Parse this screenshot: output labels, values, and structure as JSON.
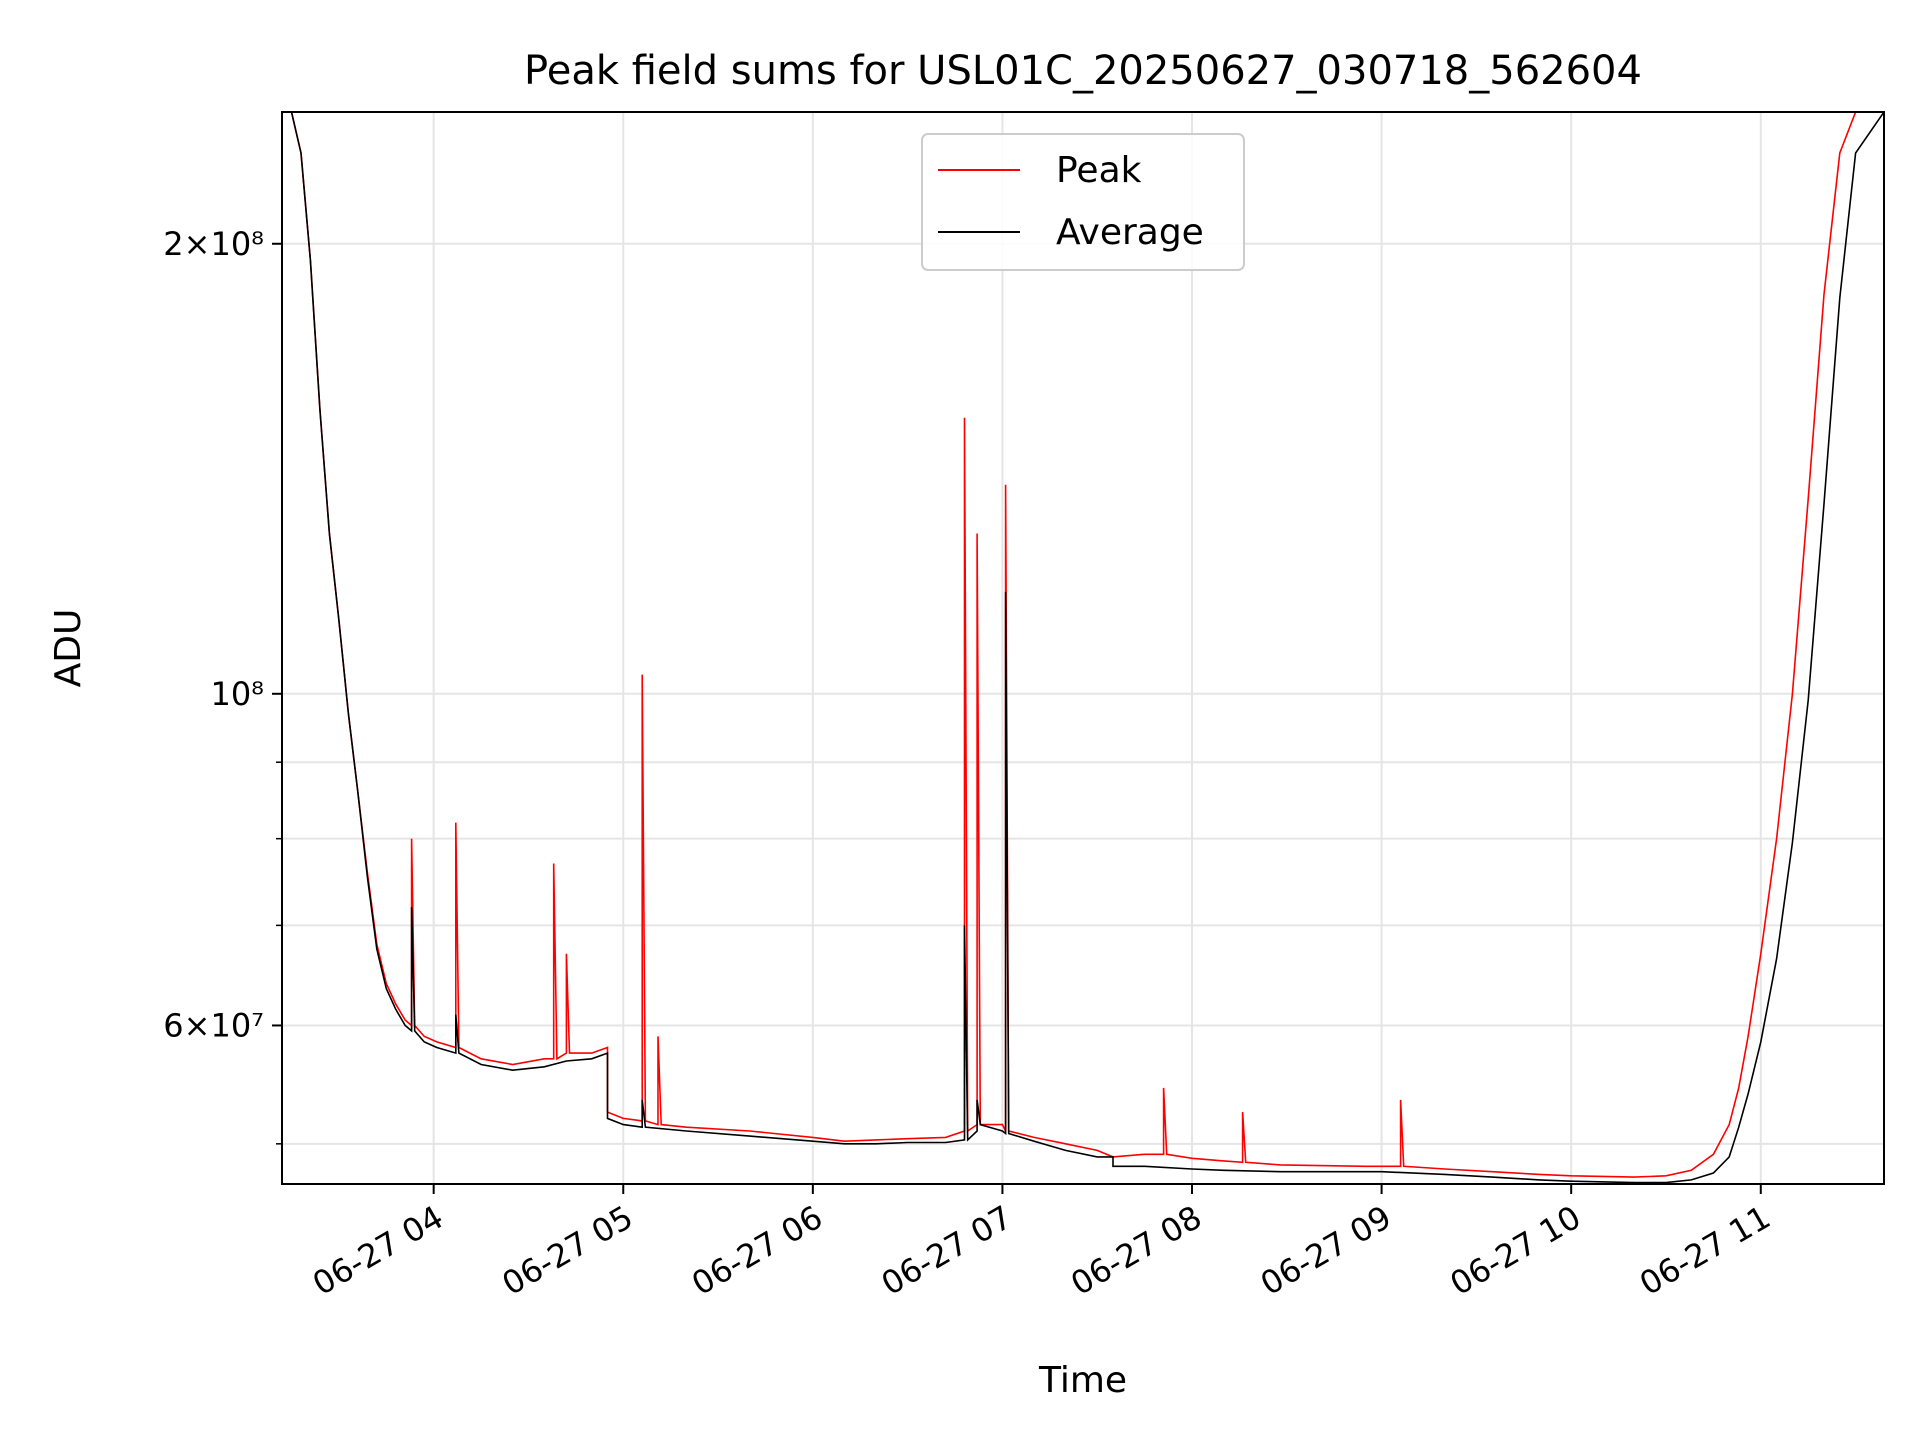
{
  "chart_data": {
    "type": "line",
    "title": "Peak field sums for USL01C_20250627_030718_562604",
    "xlabel": "Time",
    "ylabel": "ADU",
    "yscale": "log",
    "xlim": [
      "2025-06-27 03:12",
      "2025-06-27 11:39"
    ],
    "ylim": [
      47000000,
      245000000
    ],
    "grid": true,
    "legend": "upper-center",
    "colors": {
      "Peak": "#ff0000",
      "Average": "#000000"
    },
    "x_ticks": [
      {
        "t": "2025-06-27 04:00",
        "label": "06-27 04"
      },
      {
        "t": "2025-06-27 05:00",
        "label": "06-27 05"
      },
      {
        "t": "2025-06-27 06:00",
        "label": "06-27 06"
      },
      {
        "t": "2025-06-27 07:00",
        "label": "06-27 07"
      },
      {
        "t": "2025-06-27 08:00",
        "label": "06-27 08"
      },
      {
        "t": "2025-06-27 09:00",
        "label": "06-27 09"
      },
      {
        "t": "2025-06-27 10:00",
        "label": "06-27 10"
      },
      {
        "t": "2025-06-27 11:00",
        "label": "06-27 11"
      }
    ],
    "y_ticks": [
      {
        "v": 200000000,
        "label": "2×10⁸"
      },
      {
        "v": 100000000,
        "label": "10⁸"
      },
      {
        "v": 60000000,
        "label": "6×10⁷"
      }
    ],
    "y_minor_ticks": [
      50000000,
      70000000,
      80000000,
      90000000
    ],
    "series": [
      {
        "name": "Peak",
        "x": [
          "2025-06-27 03:12",
          "2025-06-27 03:15",
          "2025-06-27 03:18",
          "2025-06-27 03:21",
          "2025-06-27 03:24",
          "2025-06-27 03:27",
          "2025-06-27 03:30",
          "2025-06-27 03:33",
          "2025-06-27 03:36",
          "2025-06-27 03:39",
          "2025-06-27 03:42",
          "2025-06-27 03:45",
          "2025-06-27 03:48",
          "2025-06-27 03:51",
          "2025-06-27 03:53",
          "2025-06-27 03:53",
          "2025-06-27 03:54",
          "2025-06-27 03:57",
          "2025-06-27 04:01",
          "2025-06-27 04:07",
          "2025-06-27 04:07",
          "2025-06-27 04:08",
          "2025-06-27 04:15",
          "2025-06-27 04:25",
          "2025-06-27 04:35",
          "2025-06-27 04:38",
          "2025-06-27 04:38",
          "2025-06-27 04:39",
          "2025-06-27 04:42",
          "2025-06-27 04:42",
          "2025-06-27 04:43",
          "2025-06-27 04:50",
          "2025-06-27 04:55",
          "2025-06-27 04:55",
          "2025-06-27 05:00",
          "2025-06-27 05:06",
          "2025-06-27 05:06",
          "2025-06-27 05:07",
          "2025-06-27 05:11",
          "2025-06-27 05:11",
          "2025-06-27 05:12",
          "2025-06-27 05:20",
          "2025-06-27 05:40",
          "2025-06-27 06:00",
          "2025-06-27 06:10",
          "2025-06-27 06:20",
          "2025-06-27 06:30",
          "2025-06-27 06:42",
          "2025-06-27 06:48",
          "2025-06-27 06:48",
          "2025-06-27 06:49",
          "2025-06-27 06:52",
          "2025-06-27 06:52",
          "2025-06-27 06:53",
          "2025-06-27 07:00",
          "2025-06-27 07:01",
          "2025-06-27 07:01",
          "2025-06-27 07:02",
          "2025-06-27 07:10",
          "2025-06-27 07:20",
          "2025-06-27 07:30",
          "2025-06-27 07:35",
          "2025-06-27 07:35",
          "2025-06-27 07:45",
          "2025-06-27 07:51",
          "2025-06-27 07:51",
          "2025-06-27 07:52",
          "2025-06-27 08:00",
          "2025-06-27 08:10",
          "2025-06-27 08:16",
          "2025-06-27 08:16",
          "2025-06-27 08:17",
          "2025-06-27 08:28",
          "2025-06-27 08:55",
          "2025-06-27 09:00",
          "2025-06-27 09:06",
          "2025-06-27 09:06",
          "2025-06-27 09:07",
          "2025-06-27 09:20",
          "2025-06-27 09:35",
          "2025-06-27 09:50",
          "2025-06-27 10:00",
          "2025-06-27 10:20",
          "2025-06-27 10:30",
          "2025-06-27 10:38",
          "2025-06-27 10:45",
          "2025-06-27 10:50",
          "2025-06-27 10:53",
          "2025-06-27 10:56",
          "2025-06-27 11:00",
          "2025-06-27 11:05",
          "2025-06-27 11:10",
          "2025-06-27 11:15",
          "2025-06-27 11:20",
          "2025-06-27 11:25",
          "2025-06-27 11:30",
          "2025-06-27 11:39"
        ],
        "y": [
          245000000,
          245000000,
          230000000,
          195000000,
          155000000,
          128000000,
          112000000,
          97000000,
          86000000,
          76000000,
          68000000,
          64000000,
          62000000,
          60500000,
          60000000,
          80000000,
          60000000,
          59000000,
          58500000,
          58000000,
          82000000,
          58000000,
          57000000,
          56500000,
          57000000,
          57000000,
          77000000,
          57000000,
          57500000,
          67000000,
          57500000,
          57500000,
          58000000,
          52500000,
          52000000,
          51800000,
          103000000,
          51800000,
          51500000,
          59000000,
          51500000,
          51300000,
          51000000,
          50500000,
          50200000,
          50300000,
          50400000,
          50500000,
          51000000,
          153000000,
          51000000,
          51500000,
          128000000,
          51500000,
          51500000,
          51000000,
          138000000,
          51000000,
          50500000,
          50000000,
          49500000,
          49000000,
          49000000,
          49200000,
          49200000,
          54500000,
          49200000,
          48900000,
          48700000,
          48600000,
          52500000,
          48600000,
          48400000,
          48300000,
          48300000,
          48300000,
          53500000,
          48300000,
          48100000,
          47900000,
          47700000,
          47600000,
          47500000,
          47600000,
          48000000,
          49200000,
          51500000,
          54500000,
          59000000,
          67000000,
          80000000,
          100000000,
          135000000,
          185000000,
          230000000,
          245000000,
          245000000
        ]
      },
      {
        "name": "Average",
        "x": [
          "2025-06-27 03:12",
          "2025-06-27 03:15",
          "2025-06-27 03:18",
          "2025-06-27 03:21",
          "2025-06-27 03:24",
          "2025-06-27 03:27",
          "2025-06-27 03:30",
          "2025-06-27 03:33",
          "2025-06-27 03:36",
          "2025-06-27 03:39",
          "2025-06-27 03:42",
          "2025-06-27 03:45",
          "2025-06-27 03:48",
          "2025-06-27 03:51",
          "2025-06-27 03:53",
          "2025-06-27 03:53",
          "2025-06-27 03:54",
          "2025-06-27 03:57",
          "2025-06-27 04:01",
          "2025-06-27 04:07",
          "2025-06-27 04:07",
          "2025-06-27 04:08",
          "2025-06-27 04:15",
          "2025-06-27 04:25",
          "2025-06-27 04:35",
          "2025-06-27 04:42",
          "2025-06-27 04:50",
          "2025-06-27 04:55",
          "2025-06-27 04:55",
          "2025-06-27 05:00",
          "2025-06-27 05:06",
          "2025-06-27 05:06",
          "2025-06-27 05:07",
          "2025-06-27 05:20",
          "2025-06-27 05:40",
          "2025-06-27 06:00",
          "2025-06-27 06:10",
          "2025-06-27 06:20",
          "2025-06-27 06:30",
          "2025-06-27 06:42",
          "2025-06-27 06:48",
          "2025-06-27 06:48",
          "2025-06-27 06:49",
          "2025-06-27 06:52",
          "2025-06-27 06:52",
          "2025-06-27 06:53",
          "2025-06-27 07:00",
          "2025-06-27 07:01",
          "2025-06-27 07:01",
          "2025-06-27 07:02",
          "2025-06-27 07:10",
          "2025-06-27 07:20",
          "2025-06-27 07:30",
          "2025-06-27 07:35",
          "2025-06-27 07:35",
          "2025-06-27 07:45",
          "2025-06-27 08:00",
          "2025-06-27 08:10",
          "2025-06-27 08:28",
          "2025-06-27 08:55",
          "2025-06-27 09:00",
          "2025-06-27 09:20",
          "2025-06-27 09:35",
          "2025-06-27 09:50",
          "2025-06-27 10:00",
          "2025-06-27 10:20",
          "2025-06-27 10:30",
          "2025-06-27 10:38",
          "2025-06-27 10:45",
          "2025-06-27 10:50",
          "2025-06-27 10:53",
          "2025-06-27 10:56",
          "2025-06-27 11:00",
          "2025-06-27 11:05",
          "2025-06-27 11:10",
          "2025-06-27 11:15",
          "2025-06-27 11:20",
          "2025-06-27 11:25",
          "2025-06-27 11:30",
          "2025-06-27 11:39"
        ],
        "y": [
          245000000,
          245000000,
          230000000,
          195000000,
          155000000,
          128000000,
          112000000,
          97000000,
          86000000,
          75500000,
          67500000,
          63500000,
          61500000,
          60000000,
          59500000,
          72000000,
          59500000,
          58500000,
          58000000,
          57500000,
          61000000,
          57500000,
          56500000,
          56000000,
          56300000,
          56800000,
          57000000,
          57500000,
          52000000,
          51500000,
          51300000,
          53500000,
          51300000,
          51000000,
          50600000,
          50200000,
          50000000,
          50000000,
          50100000,
          50100000,
          50300000,
          70000000,
          50300000,
          51000000,
          53500000,
          51500000,
          51000000,
          50800000,
          117000000,
          50800000,
          50200000,
          49500000,
          49000000,
          49000000,
          48300000,
          48300000,
          48100000,
          48000000,
          47900000,
          47900000,
          47900000,
          47700000,
          47500000,
          47300000,
          47200000,
          47100000,
          47100000,
          47300000,
          47800000,
          49000000,
          51300000,
          54000000,
          58500000,
          66500000,
          79500000,
          99000000,
          134000000,
          184000000,
          230000000,
          245000000
        ]
      }
    ]
  }
}
